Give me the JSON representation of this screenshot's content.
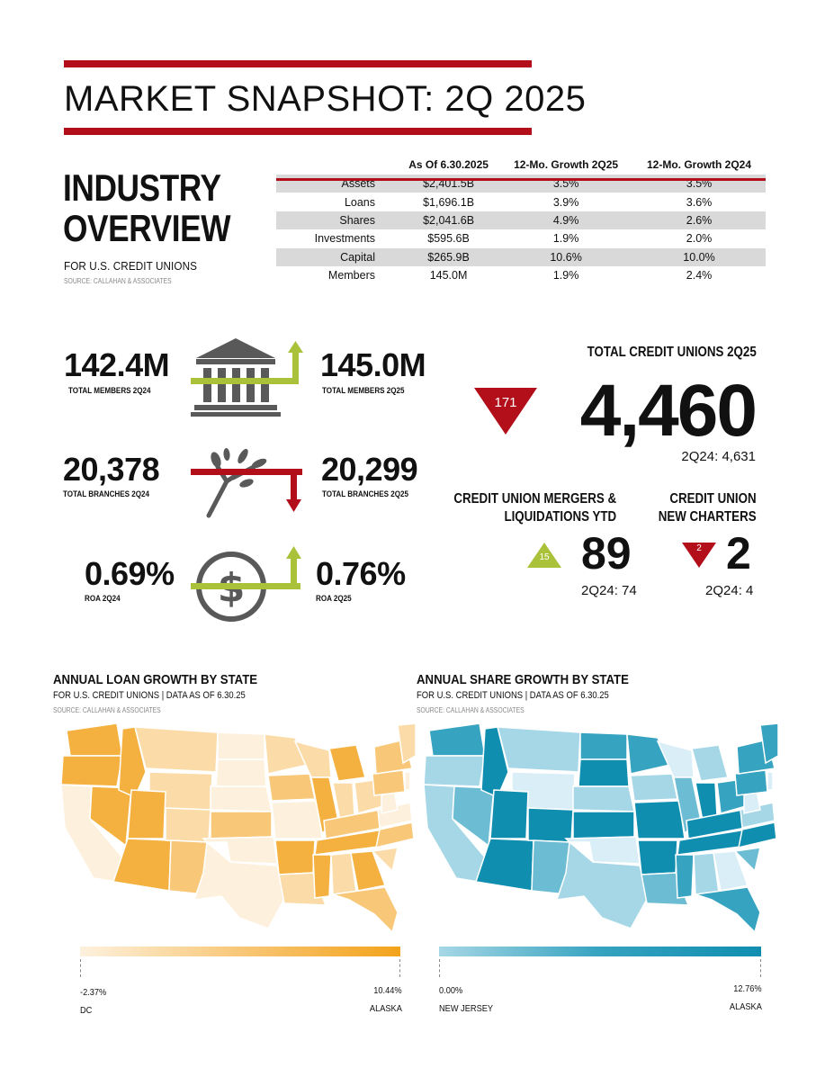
{
  "title": "MARKET SNAPSHOT: 2Q 2025",
  "overview": {
    "heading_line1": "INDUSTRY",
    "heading_line2": "OVERVIEW",
    "subtitle": "FOR U.S. CREDIT UNIONS",
    "source": "SOURCE: CALLAHAN & ASSOCIATES",
    "columns": [
      "As Of 6.30.2025",
      "12-Mo. Growth 2Q25",
      "12-Mo. Growth 2Q24"
    ],
    "rows": [
      {
        "label": "Assets",
        "value": "$2,401.5B",
        "g25": "3.5%",
        "g24": "3.5%"
      },
      {
        "label": "Loans",
        "value": "$1,696.1B",
        "g25": "3.9%",
        "g24": "3.6%"
      },
      {
        "label": "Shares",
        "value": "$2,041.6B",
        "g25": "4.9%",
        "g24": "2.6%"
      },
      {
        "label": "Investments",
        "value": "$595.6B",
        "g25": "1.9%",
        "g24": "2.0%"
      },
      {
        "label": "Capital",
        "value": "$265.9B",
        "g25": "10.6%",
        "g24": "10.0%"
      },
      {
        "label": "Members",
        "value": "145.0M",
        "g25": "1.9%",
        "g24": "2.4%"
      }
    ]
  },
  "stats": {
    "members_prev": "142.4M",
    "members_prev_label": "TOTAL MEMBERS 2Q24",
    "members_curr": "145.0M",
    "members_curr_label": "TOTAL MEMBERS 2Q25",
    "branches_prev": "20,378",
    "branches_prev_label": "TOTAL BRANCHES 2Q24",
    "branches_curr": "20,299",
    "branches_curr_label": "TOTAL BRANCHES 2Q25",
    "roa_prev": "0.69%",
    "roa_prev_label": "ROA 2Q24",
    "roa_curr": "0.76%",
    "roa_curr_label": "ROA 2Q25"
  },
  "total_cu": {
    "heading": "TOTAL CREDIT UNIONS 2Q25",
    "value": "4,460",
    "change": "171",
    "prior": "2Q24: 4,631"
  },
  "mergers": {
    "heading_line1": "CREDIT UNION MERGERS &",
    "heading_line2": "LIQUIDATIONS YTD",
    "value": "89",
    "change": "15",
    "prior": "2Q24: 74"
  },
  "charters": {
    "heading_line1": "CREDIT UNION",
    "heading_line2": "NEW CHARTERS",
    "value": "2",
    "change": "2",
    "prior": "2Q24: 4"
  },
  "loan_map": {
    "title": "ANNUAL LOAN GROWTH BY STATE",
    "subtitle": "FOR U.S. CREDIT UNIONS  |  DATA AS OF 6.30.25",
    "source": "SOURCE: CALLAHAN & ASSOCIATES",
    "min_value": "-2.37%",
    "min_state": "DC",
    "max_value": "10.44%",
    "max_state": "ALASKA",
    "colors": [
      "#fdf1dd",
      "#fbdca8",
      "#f8c777",
      "#f5b13f",
      "#f3a31b"
    ]
  },
  "share_map": {
    "title": "ANNUAL SHARE GROWTH BY STATE",
    "subtitle": "FOR U.S. CREDIT UNIONS  |  DATA AS OF 6.30.25",
    "source": "SOURCE: CALLAHAN & ASSOCIATES",
    "min_value": "0.00%",
    "min_state": "NEW JERSEY",
    "max_value": "12.76%",
    "max_state": "ALASKA",
    "colors": [
      "#d9eef6",
      "#a6d7e6",
      "#6cbcd3",
      "#36a3c0",
      "#108eb0"
    ]
  },
  "theme": {
    "red": "#b30f1a",
    "green": "#a9c23a",
    "gray": "#595959"
  }
}
